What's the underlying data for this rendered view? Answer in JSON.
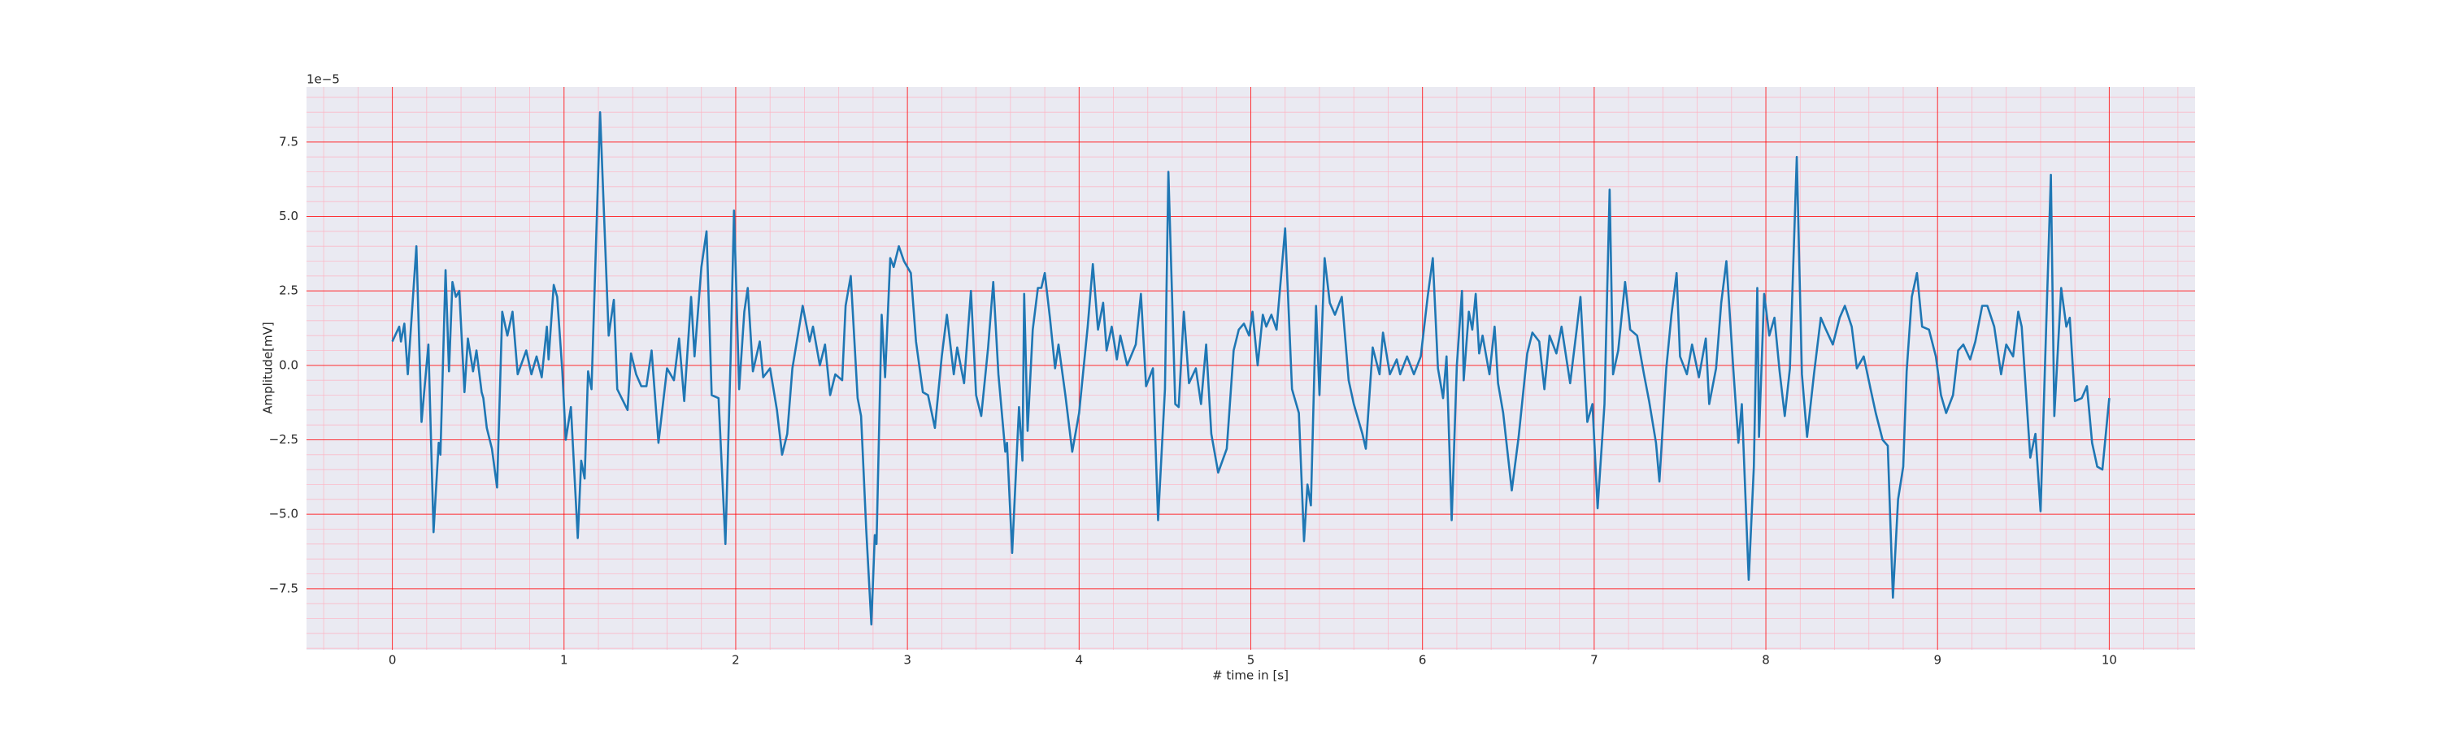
{
  "chart_data": {
    "type": "line",
    "xlabel": "# time in [s]",
    "ylabel": "Amplitude[mV]",
    "y_offset_label": "1e−5",
    "xlim": [
      -0.5,
      10.5
    ],
    "ylim": [
      -9.55,
      9.35
    ],
    "xticks": [
      0,
      1,
      2,
      3,
      4,
      5,
      6,
      7,
      8,
      9,
      10
    ],
    "yticks": [
      {
        "value": -7.5,
        "label": "−7.5"
      },
      {
        "value": -5,
        "label": "−5.0"
      },
      {
        "value": -2.5,
        "label": "−2.5"
      },
      {
        "value": 0,
        "label": "0.0"
      },
      2.5,
      {
        "value": 5,
        "label": "5.0"
      },
      7.5
    ],
    "grid": true,
    "minor_grid": {
      "x_step": 0.2,
      "y_step": 0.5
    },
    "background": "#eaeaf2",
    "series": [
      {
        "color": "#1f77b4",
        "x": [
          0,
          0.04,
          0.05,
          0.07,
          0.09,
          0.14,
          0.17,
          0.21,
          0.24,
          0.27,
          0.28,
          0.31,
          0.33,
          0.35,
          0.37,
          0.39,
          0.42,
          0.44,
          0.47,
          0.49,
          0.52,
          0.53,
          0.55,
          0.58,
          0.61,
          0.64,
          0.67,
          0.7,
          0.73,
          0.78,
          0.81,
          0.84,
          0.87,
          0.9,
          0.91,
          0.94,
          0.96,
          0.99,
          1.01,
          1.04,
          1.08,
          1.1,
          1.12,
          1.14,
          1.16,
          1.21,
          1.26,
          1.29,
          1.31,
          1.37,
          1.39,
          1.42,
          1.45,
          1.48,
          1.51,
          1.55,
          1.6,
          1.64,
          1.67,
          1.7,
          1.74,
          1.76,
          1.8,
          1.83,
          1.86,
          1.9,
          1.94,
          1.97,
          1.99,
          2.02,
          2.05,
          2.07,
          2.1,
          2.14,
          2.16,
          2.2,
          2.24,
          2.27,
          2.3,
          2.33,
          2.39,
          2.43,
          2.45,
          2.49,
          2.52,
          2.55,
          2.58,
          2.62,
          2.64,
          2.67,
          2.71,
          2.73,
          2.76,
          2.79,
          2.81,
          2.82,
          2.85,
          2.87,
          2.9,
          2.92,
          2.95,
          2.98,
          3.02,
          3.05,
          3.09,
          3.12,
          3.16,
          3.2,
          3.23,
          3.27,
          3.29,
          3.33,
          3.37,
          3.4,
          3.43,
          3.47,
          3.5,
          3.53,
          3.57,
          3.58,
          3.61,
          3.65,
          3.67,
          3.68,
          3.7,
          3.73,
          3.76,
          3.78,
          3.8,
          3.83,
          3.86,
          3.88,
          3.92,
          3.96,
          4.0,
          4.05,
          4.08,
          4.11,
          4.14,
          4.16,
          4.19,
          4.22,
          4.24,
          4.28,
          4.33,
          4.36,
          4.39,
          4.43,
          4.46,
          4.5,
          4.52,
          4.56,
          4.58,
          4.61,
          4.64,
          4.68,
          4.71,
          4.74,
          4.77,
          4.81,
          4.86,
          4.9,
          4.93,
          4.96,
          4.99,
          5.01,
          5.04,
          5.07,
          5.09,
          5.12,
          5.15,
          5.2,
          5.24,
          5.28,
          5.31,
          5.33,
          5.35,
          5.38,
          5.4,
          5.43,
          5.46,
          5.49,
          5.53,
          5.57,
          5.6,
          5.65,
          5.67,
          5.71,
          5.75,
          5.77,
          5.81,
          5.85,
          5.87,
          5.91,
          5.95,
          5.99,
          6.03,
          6.06,
          6.09,
          6.12,
          6.14,
          6.17,
          6.2,
          6.23,
          6.24,
          6.27,
          6.29,
          6.31,
          6.33,
          6.35,
          6.39,
          6.42,
          6.44,
          6.47,
          6.52,
          6.56,
          6.61,
          6.64,
          6.68,
          6.71,
          6.74,
          6.78,
          6.81,
          6.86,
          6.9,
          6.92,
          6.96,
          6.99,
          7.02,
          7.06,
          7.09,
          7.11,
          7.14,
          7.18,
          7.21,
          7.25,
          7.29,
          7.32,
          7.36,
          7.38,
          7.42,
          7.45,
          7.48,
          7.5,
          7.54,
          7.57,
          7.61,
          7.65,
          7.67,
          7.71,
          7.74,
          7.77,
          7.81,
          7.84,
          7.86,
          7.9,
          7.93,
          7.95,
          7.96,
          7.99,
          8.02,
          8.05,
          8.08,
          8.11,
          8.14,
          8.18,
          8.21,
          8.24,
          8.28,
          8.32,
          8.35,
          8.39,
          8.43,
          8.46,
          8.5,
          8.53,
          8.57,
          8.61,
          8.64,
          8.68,
          8.71,
          8.74,
          8.77,
          8.8,
          8.82,
          8.85,
          8.88,
          8.91,
          8.95,
          8.99,
          9.02,
          9.05,
          9.09,
          9.12,
          9.15,
          9.19,
          9.22,
          9.26,
          9.29,
          9.33,
          9.37,
          9.4,
          9.44,
          9.47,
          9.49,
          9.54,
          9.57,
          9.6,
          9.63,
          9.66,
          9.68,
          9.72,
          9.75,
          9.77,
          9.8,
          9.84,
          9.87,
          9.9,
          9.93,
          9.96,
          10.0
        ],
        "values": [
          0.8,
          1.3,
          0.8,
          1.4,
          -0.3,
          4.0,
          -1.9,
          0.7,
          -5.6,
          -2.6,
          -3.0,
          3.2,
          -0.2,
          2.8,
          2.3,
          2.5,
          -0.9,
          0.9,
          -0.2,
          0.5,
          -0.9,
          -1.1,
          -2.1,
          -2.8,
          -4.1,
          1.8,
          1.0,
          1.8,
          -0.3,
          0.5,
          -0.3,
          0.3,
          -0.4,
          1.3,
          0.2,
          2.7,
          2.3,
          -0.2,
          -2.5,
          -1.4,
          -5.8,
          -3.2,
          -3.8,
          -0.2,
          -0.8,
          8.5,
          1.0,
          2.2,
          -0.8,
          -1.5,
          0.4,
          -0.3,
          -0.7,
          -0.7,
          0.5,
          -2.6,
          -0.1,
          -0.5,
          0.9,
          -1.2,
          2.3,
          0.3,
          3.3,
          4.5,
          -1.0,
          -1.1,
          -6.0,
          0.2,
          5.2,
          -0.8,
          1.8,
          2.6,
          -0.2,
          0.8,
          -0.4,
          -0.1,
          -1.5,
          -3.0,
          -2.3,
          -0.1,
          2.0,
          0.8,
          1.3,
          0.0,
          0.7,
          -1.0,
          -0.3,
          -0.5,
          2.0,
          3.0,
          -1.1,
          -1.7,
          -5.5,
          -8.7,
          -5.7,
          -6.0,
          1.7,
          -0.4,
          3.6,
          3.3,
          4.0,
          3.5,
          3.1,
          0.8,
          -0.9,
          -1.0,
          -2.1,
          0.3,
          1.7,
          -0.3,
          0.6,
          -0.6,
          2.5,
          -1.0,
          -1.7,
          0.6,
          2.8,
          -0.3,
          -2.9,
          -2.6,
          -6.3,
          -1.4,
          -3.2,
          2.4,
          -2.2,
          1.2,
          2.6,
          2.6,
          3.1,
          1.6,
          -0.1,
          0.7,
          -1.0,
          -2.9,
          -1.6,
          1.3,
          3.4,
          1.2,
          2.1,
          0.5,
          1.3,
          0.2,
          1.0,
          0.0,
          0.7,
          2.4,
          -0.7,
          -0.1,
          -5.2,
          -0.8,
          6.5,
          -1.3,
          -1.4,
          1.8,
          -0.6,
          -0.1,
          -1.3,
          0.7,
          -2.3,
          -3.6,
          -2.8,
          0.5,
          1.2,
          1.4,
          1.0,
          1.8,
          0.0,
          1.7,
          1.3,
          1.7,
          1.2,
          4.6,
          -0.8,
          -1.6,
          -5.9,
          -4.0,
          -4.7,
          2.0,
          -1.0,
          3.6,
          2.1,
          1.7,
          2.3,
          -0.5,
          -1.3,
          -2.3,
          -2.8,
          0.6,
          -0.3,
          1.1,
          -0.3,
          0.2,
          -0.3,
          0.3,
          -0.3,
          0.3,
          2.3,
          3.6,
          -0.1,
          -1.1,
          0.3,
          -5.2,
          0.0,
          2.5,
          -0.5,
          1.8,
          1.2,
          2.4,
          0.4,
          1.0,
          -0.3,
          1.3,
          -0.6,
          -1.6,
          -4.2,
          -2.4,
          0.4,
          1.1,
          0.8,
          -0.8,
          1.0,
          0.4,
          1.3,
          -0.6,
          1.3,
          2.3,
          -1.9,
          -1.3,
          -4.8,
          -1.3,
          5.9,
          -0.3,
          0.5,
          2.8,
          1.2,
          1.0,
          -0.3,
          -1.2,
          -2.6,
          -3.9,
          -0.1,
          1.7,
          3.1,
          0.3,
          -0.3,
          0.7,
          -0.4,
          0.9,
          -1.3,
          -0.1,
          2.1,
          3.5,
          -0.1,
          -2.6,
          -1.3,
          -7.2,
          -3.4,
          2.6,
          -2.4,
          2.4,
          1.0,
          1.6,
          -0.2,
          -1.7,
          -0.1,
          7.0,
          -0.3,
          -2.4,
          -0.3,
          1.6,
          1.2,
          0.7,
          1.6,
          2.0,
          1.3,
          -0.1,
          0.3,
          -0.8,
          -1.6,
          -2.5,
          -2.7,
          -7.8,
          -4.5,
          -3.4,
          -0.2,
          2.3,
          3.1,
          1.3,
          1.2,
          0.3,
          -1.0,
          -1.6,
          -1.0,
          0.5,
          0.7,
          0.2,
          0.8,
          2.0,
          2.0,
          1.3,
          -0.3,
          0.7,
          0.3,
          1.8,
          1.3,
          -3.1,
          -2.3,
          -4.9,
          0.8,
          6.4,
          -1.7,
          2.6,
          1.3,
          1.6,
          -1.2,
          -1.1,
          -0.7,
          -2.6,
          -3.4,
          -3.5,
          -1.1
        ]
      }
    ]
  }
}
